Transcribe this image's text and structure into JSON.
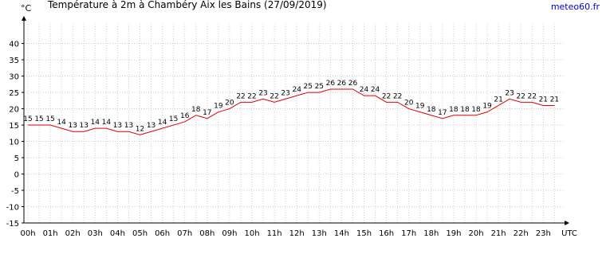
{
  "chart_data": {
    "type": "line",
    "title": "Température à 2m à Chambéry Aix les Bains (27/09/2019)",
    "y_label": "°C",
    "x_label": "UTC",
    "source": "meteo60.fr",
    "categories": [
      "00h",
      null,
      "01h",
      null,
      "02h",
      null,
      "03h",
      null,
      "04h",
      null,
      "05h",
      null,
      "06h",
      null,
      "07h",
      null,
      "08h",
      null,
      "09h",
      null,
      "10h",
      null,
      "11h",
      null,
      "12h",
      null,
      "13h",
      null,
      "14h",
      null,
      "15h",
      null,
      "16h",
      null,
      "17h",
      null,
      "18h",
      null,
      "19h",
      null,
      "20h",
      null,
      "21h",
      null,
      "22h",
      null,
      "23h",
      null
    ],
    "series": [
      {
        "name": "Température",
        "color": "#e00000",
        "values": [
          15,
          15,
          15,
          14,
          13,
          13,
          14,
          14,
          13,
          13,
          12,
          13,
          14,
          15,
          16,
          18,
          17,
          19,
          20,
          22,
          22,
          23,
          22,
          23,
          24,
          25,
          25,
          26,
          26,
          26,
          24,
          24,
          22,
          22,
          20,
          19,
          18,
          17,
          18,
          18,
          18,
          19,
          21,
          23,
          22,
          22,
          21,
          21
        ]
      }
    ],
    "ylim": [
      -15,
      46
    ],
    "yticks": [
      -15,
      -10,
      -5,
      0,
      5,
      10,
      15,
      20,
      25,
      30,
      35,
      40
    ],
    "grid": true
  }
}
